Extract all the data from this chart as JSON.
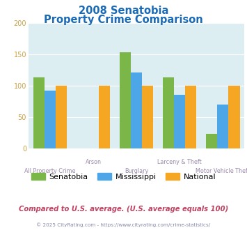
{
  "title_line1": "2008 Senatobia",
  "title_line2": "Property Crime Comparison",
  "categories": [
    "All Property Crime",
    "Arson",
    "Burglary",
    "Larceny & Theft",
    "Motor Vehicle Theft"
  ],
  "senatobia": [
    113,
    0,
    153,
    113,
    23
  ],
  "mississippi": [
    92,
    0,
    121,
    85,
    70
  ],
  "national": [
    100,
    100,
    100,
    100,
    100
  ],
  "color_senatobia": "#7ab648",
  "color_mississippi": "#4da6e8",
  "color_national": "#f5a623",
  "ylim": [
    0,
    200
  ],
  "yticks": [
    0,
    50,
    100,
    150,
    200
  ],
  "bg_color": "#ddeef3",
  "title_color": "#1a6ab5",
  "xlabel_color": "#9988aa",
  "footer_text": "Compared to U.S. average. (U.S. average equals 100)",
  "footer_color": "#c04060",
  "credit_text": "© 2025 CityRating.com - https://www.cityrating.com/crime-statistics/",
  "credit_color": "#8888aa",
  "ytick_color": "#c8a040"
}
